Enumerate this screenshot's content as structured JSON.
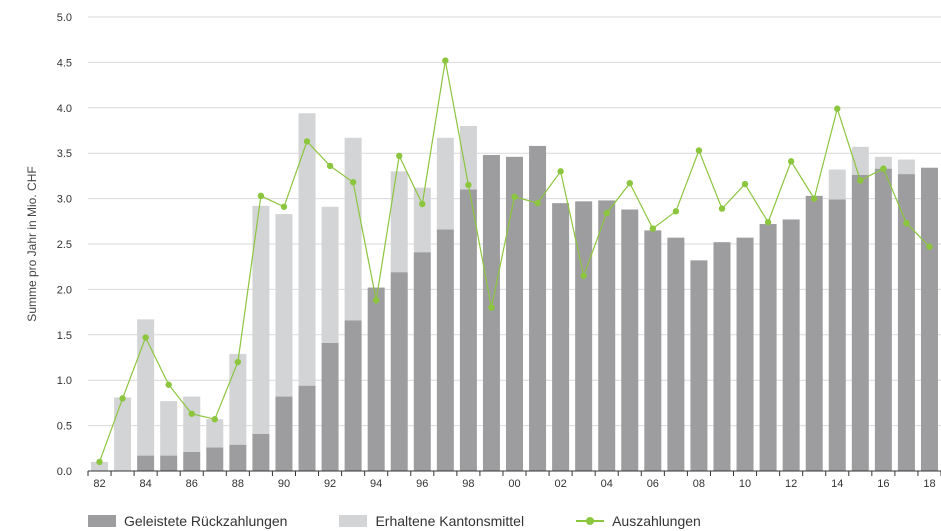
{
  "chart_data": {
    "type": "bar",
    "ylabel": "Summe pro Jahr in Mio. CHF",
    "ylim": [
      0,
      5.0
    ],
    "ytick_labels": [
      "0.0",
      "0.5",
      "1.0",
      "1.5",
      "2.0",
      "2.5",
      "3.0",
      "3.5",
      "4.0",
      "4.5",
      "5.0"
    ],
    "categories": [
      "82",
      "83",
      "84",
      "85",
      "86",
      "87",
      "88",
      "89",
      "90",
      "91",
      "92",
      "93",
      "94",
      "95",
      "96",
      "97",
      "98",
      "99",
      "00",
      "01",
      "02",
      "03",
      "04",
      "05",
      "06",
      "07",
      "08",
      "09",
      "10",
      "11",
      "12",
      "13",
      "14",
      "15",
      "16",
      "17",
      "18"
    ],
    "series": [
      {
        "name": "Geleistete Rückzahlungen",
        "kind": "stacked-bar",
        "color": "#9d9d9f",
        "values": [
          0,
          0,
          0.17,
          0.17,
          0.21,
          0.26,
          0.29,
          0.41,
          0.82,
          0.94,
          1.41,
          1.66,
          2.02,
          2.19,
          2.41,
          2.66,
          3.1,
          3.48,
          3.46,
          3.58,
          2.95,
          2.97,
          2.98,
          2.88,
          2.65,
          2.57,
          2.32,
          2.52,
          2.57,
          2.72,
          2.77,
          3.03,
          2.99,
          3.26,
          3.33,
          3.27,
          3.34
        ]
      },
      {
        "name": "Erhaltene Kantonsmittel",
        "kind": "stacked-bar",
        "color": "#d3d4d6",
        "values": [
          0.1,
          0.81,
          1.5,
          0.6,
          0.61,
          0.31,
          1.0,
          2.51,
          2.01,
          3.0,
          1.5,
          2.01,
          0,
          1.11,
          0.71,
          1.01,
          0.7,
          0,
          0,
          0,
          0,
          0,
          0,
          0,
          0,
          0,
          0,
          0,
          0,
          0,
          0,
          0,
          0.33,
          0.31,
          0.13,
          0.16,
          0
        ]
      },
      {
        "name": "Auszahlungen",
        "kind": "line",
        "color": "#8cc63f",
        "values": [
          0.1,
          0.8,
          1.47,
          0.95,
          0.63,
          0.57,
          1.2,
          3.03,
          2.91,
          3.63,
          3.36,
          3.18,
          1.88,
          3.47,
          2.94,
          4.52,
          3.15,
          1.8,
          3.02,
          2.95,
          3.3,
          2.15,
          2.84,
          3.17,
          2.67,
          2.86,
          3.53,
          2.89,
          3.16,
          2.74,
          3.41,
          3.0,
          3.99,
          3.2,
          3.33,
          2.73,
          2.47
        ]
      }
    ],
    "x_tick_labels_shown": [
      "82",
      "84",
      "86",
      "88",
      "90",
      "92",
      "94",
      "96",
      "98",
      "00",
      "02",
      "04",
      "06",
      "08",
      "10",
      "12",
      "14",
      "16",
      "18"
    ],
    "grid": true,
    "legend_position": "bottom"
  },
  "legend": {
    "repaid_label": "Geleistete Rückzahlungen",
    "received_label": "Erhaltene Kantonsmittel",
    "payouts_label": "Auszahlungen"
  }
}
